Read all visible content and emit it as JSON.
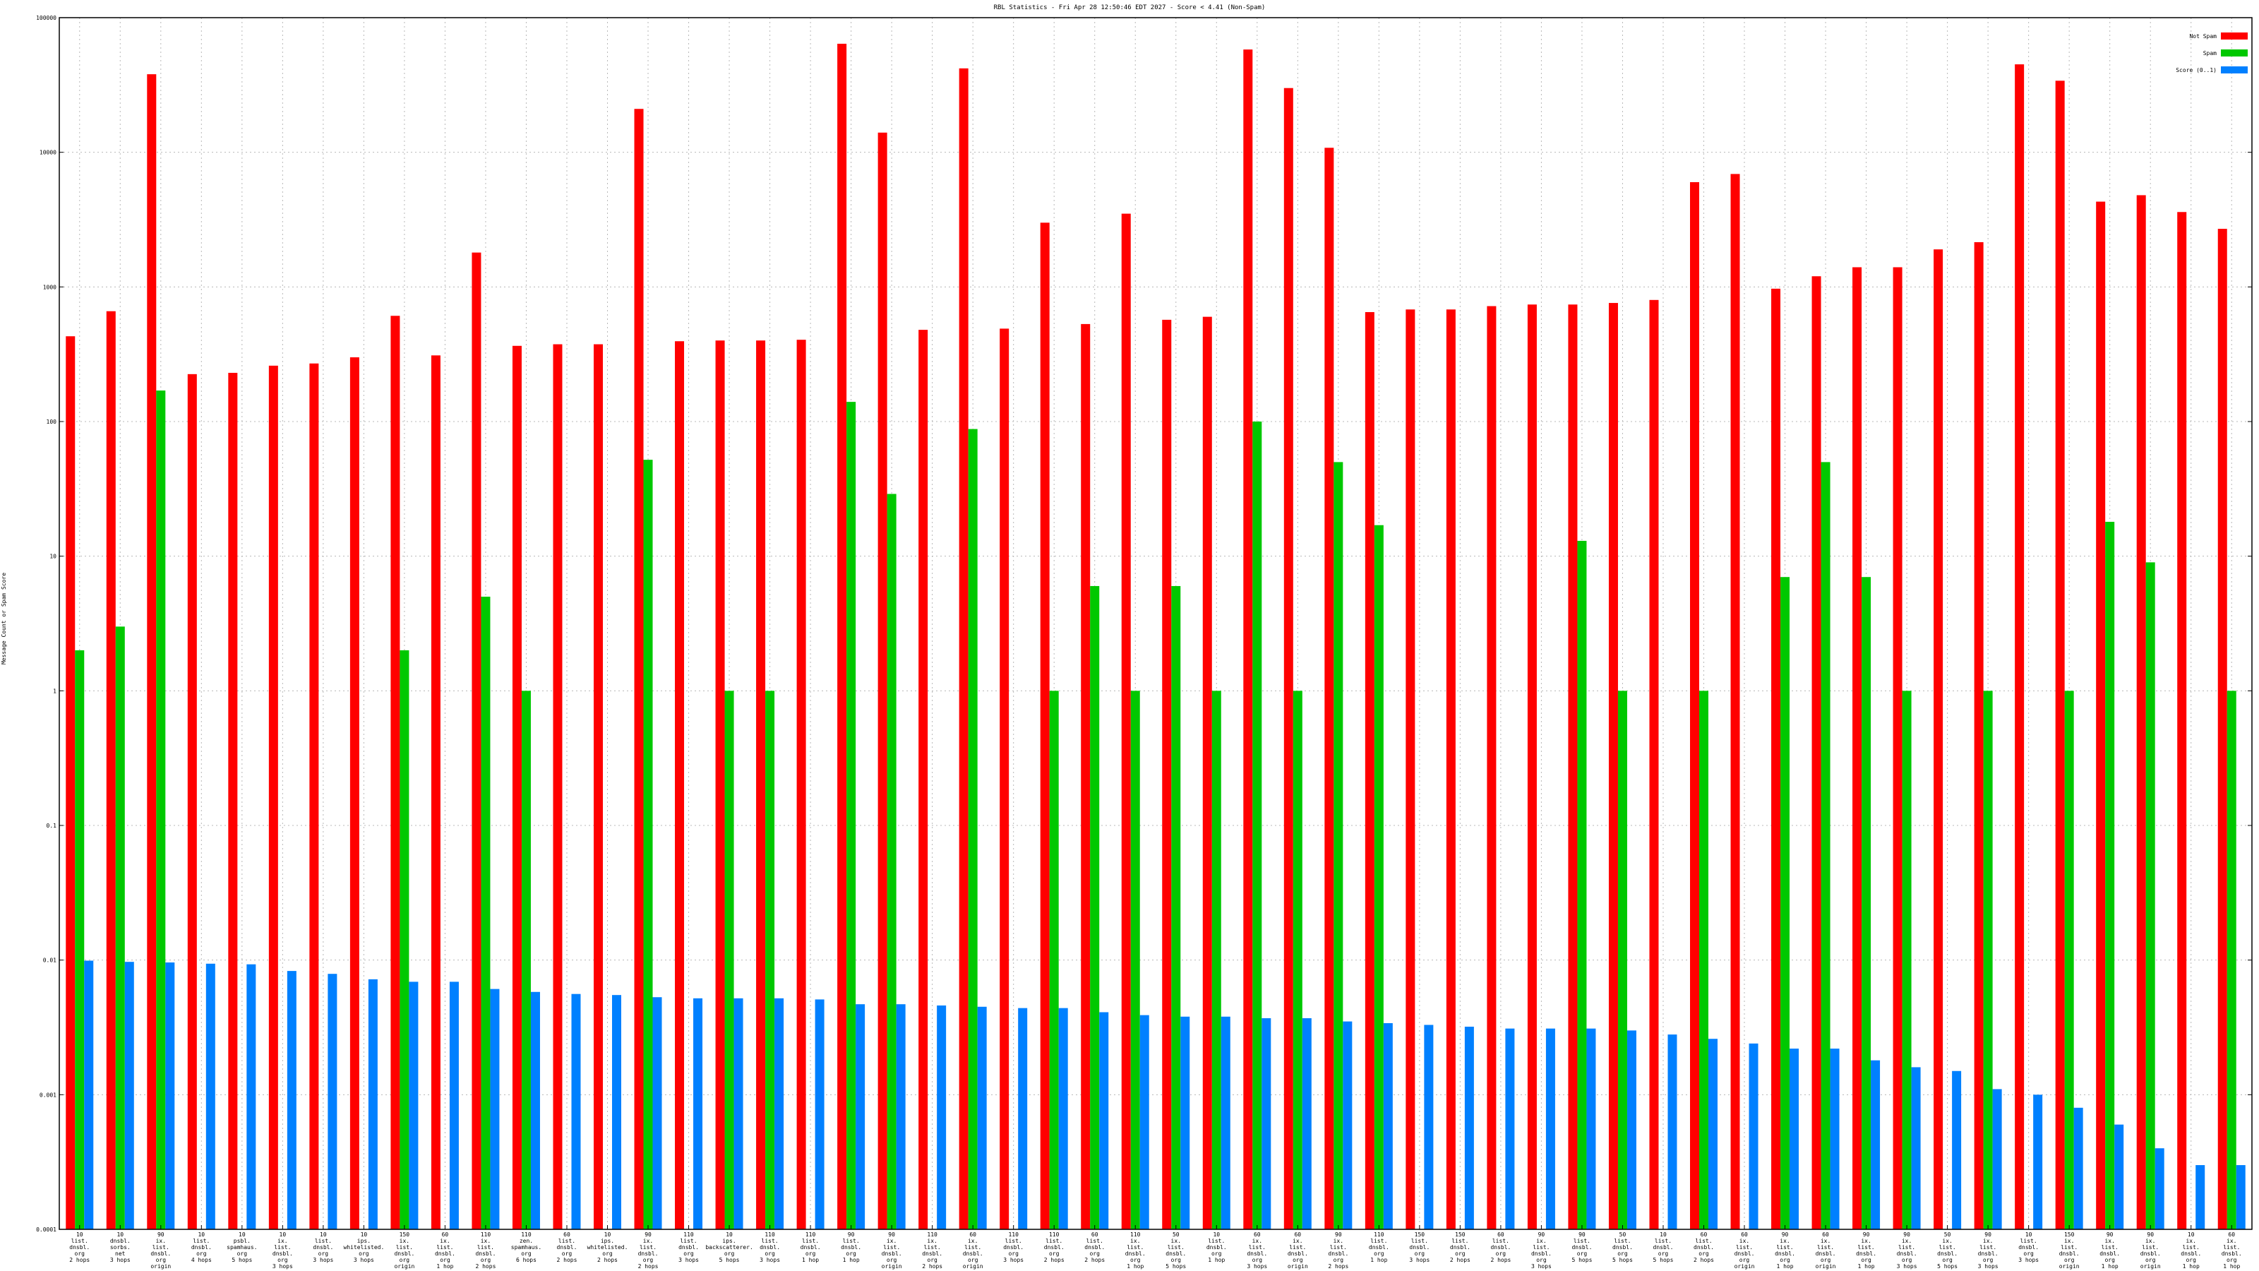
{
  "chart_data": {
    "type": "bar",
    "title": "RBL Statistics - Fri Apr 28 12:50:46 EDT 2027 - Score < 4.41 (Non-Spam)",
    "ylabel": "Message Count or Spam Score",
    "xlabel": "",
    "yscale": "log",
    "ylim": [
      0.0001,
      100000
    ],
    "ytick_labels": [
      "0.0001",
      "0.001",
      "0.01",
      "0.1",
      "1",
      "10",
      "100",
      "1000",
      "10000",
      "100000"
    ],
    "ytick_values": [
      0.0001,
      0.001,
      0.01,
      0.1,
      1,
      10,
      100,
      1000,
      10000,
      100000
    ],
    "grid": true,
    "legend_position": "top-right",
    "colors": {
      "not_spam": "#ff0000",
      "spam": "#00c800",
      "score": "#0080ff"
    },
    "categories": [
      [
        "10",
        "list.",
        "dnsbl.",
        "org",
        "2 hops"
      ],
      [
        "10",
        "dnsbl.",
        "sorbs.",
        "net",
        "3 hops"
      ],
      [
        "90",
        "ix.",
        "list.",
        "dnsbl.",
        "org",
        "origin"
      ],
      [
        "10",
        "list.",
        "dnsbl.",
        "org",
        "4 hops"
      ],
      [
        "10",
        "psbl.",
        "spamhaus.",
        "org",
        "5 hops"
      ],
      [
        "10",
        "ix.",
        "list.",
        "dnsbl.",
        "org",
        "3 hops"
      ],
      [
        "10",
        "list.",
        "dnsbl.",
        "org",
        "3 hops"
      ],
      [
        "10",
        "ips.",
        "whitelisted.",
        "org",
        "3 hops"
      ],
      [
        "150",
        "ix.",
        "list.",
        "dnsbl.",
        "org",
        "origin"
      ],
      [
        "60",
        "ix.",
        "list.",
        "dnsbl.",
        "org",
        "1 hop"
      ],
      [
        "110",
        "ix.",
        "list.",
        "dnsbl.",
        "org",
        "2 hops"
      ],
      [
        "110",
        "zen.",
        "spamhaus.",
        "org",
        "6 hops"
      ],
      [
        "60",
        "list.",
        "dnsbl.",
        "org",
        "2 hops"
      ],
      [
        "10",
        "ips.",
        "whitelisted.",
        "org",
        "2 hops"
      ],
      [
        "90",
        "ix.",
        "list.",
        "dnsbl.",
        "org",
        "2 hops"
      ],
      [
        "110",
        "list.",
        "dnsbl.",
        "org",
        "3 hops"
      ],
      [
        "10",
        "ips.",
        "backscatterer.",
        "org",
        "5 hops"
      ],
      [
        "110",
        "list.",
        "dnsbl.",
        "org",
        "3 hops"
      ],
      [
        "110",
        "list.",
        "dnsbl.",
        "org",
        "1 hop"
      ],
      [
        "90",
        "list.",
        "dnsbl.",
        "org",
        "1 hop"
      ],
      [
        "90",
        "ix.",
        "list.",
        "dnsbl.",
        "org",
        "origin"
      ],
      [
        "110",
        "ix.",
        "list.",
        "dnsbl.",
        "org",
        "2 hops"
      ],
      [
        "60",
        "ix.",
        "list.",
        "dnsbl.",
        "org",
        "origin"
      ],
      [
        "110",
        "list.",
        "dnsbl.",
        "org",
        "3 hops"
      ],
      [
        "110",
        "list.",
        "dnsbl.",
        "org",
        "2 hops"
      ],
      [
        "60",
        "list.",
        "dnsbl.",
        "org",
        "2 hops"
      ],
      [
        "110",
        "ix.",
        "list.",
        "dnsbl.",
        "org",
        "1 hop"
      ],
      [
        "50",
        "ix.",
        "list.",
        "dnsbl.",
        "org",
        "5 hops"
      ],
      [
        "10",
        "list.",
        "dnsbl.",
        "org",
        "1 hop"
      ],
      [
        "60",
        "ix.",
        "list.",
        "dnsbl.",
        "org",
        "3 hops"
      ],
      [
        "60",
        "ix.",
        "list.",
        "dnsbl.",
        "org",
        "origin"
      ],
      [
        "90",
        "ix.",
        "list.",
        "dnsbl.",
        "org",
        "2 hops"
      ],
      [
        "110",
        "list.",
        "dnsbl.",
        "org",
        "1 hop"
      ],
      [
        "150",
        "list.",
        "dnsbl.",
        "org",
        "3 hops"
      ],
      [
        "150",
        "list.",
        "dnsbl.",
        "org",
        "2 hops"
      ],
      [
        "60",
        "list.",
        "dnsbl.",
        "org",
        "2 hops"
      ],
      [
        "90",
        "ix.",
        "list.",
        "dnsbl.",
        "org",
        "3 hops"
      ],
      [
        "90",
        "list.",
        "dnsbl.",
        "org",
        "5 hops"
      ],
      [
        "50",
        "list.",
        "dnsbl.",
        "org",
        "5 hops"
      ],
      [
        "10",
        "list.",
        "dnsbl.",
        "org",
        "5 hops"
      ],
      [
        "60",
        "list.",
        "dnsbl.",
        "org",
        "2 hops"
      ],
      [
        "60",
        "ix.",
        "list.",
        "dnsbl.",
        "org",
        "origin"
      ],
      [
        "90",
        "ix.",
        "list.",
        "dnsbl.",
        "org",
        "1 hop"
      ],
      [
        "60",
        "ix.",
        "list.",
        "dnsbl.",
        "org",
        "origin"
      ],
      [
        "90",
        "ix.",
        "list.",
        "dnsbl.",
        "org",
        "1 hop"
      ],
      [
        "90",
        "ix.",
        "list.",
        "dnsbl.",
        "org",
        "3 hops"
      ],
      [
        "50",
        "ix.",
        "list.",
        "dnsbl.",
        "org",
        "5 hops"
      ],
      [
        "90",
        "ix.",
        "list.",
        "dnsbl.",
        "org",
        "3 hops"
      ],
      [
        "10",
        "list.",
        "dnsbl.",
        "org",
        "3 hops"
      ],
      [
        "150",
        "ix.",
        "list.",
        "dnsbl.",
        "org",
        "origin"
      ],
      [
        "90",
        "ix.",
        "list.",
        "dnsbl.",
        "org",
        "1 hop"
      ],
      [
        "90",
        "ix.",
        "list.",
        "dnsbl.",
        "org",
        "origin"
      ],
      [
        "10",
        "ix.",
        "list.",
        "dnsbl.",
        "org",
        "1 hop"
      ],
      [
        "60",
        "ix.",
        "list.",
        "dnsbl.",
        "org",
        "1 hop"
      ]
    ],
    "series": [
      {
        "name": "Not Spam",
        "values": [
          430,
          660,
          38000,
          225,
          230,
          260,
          270,
          300,
          610,
          310,
          1800,
          365,
          375,
          375,
          21000,
          395,
          400,
          400,
          405,
          64000,
          14000,
          480,
          42000,
          490,
          3000,
          530,
          3500,
          570,
          600,
          58000,
          30000,
          10800,
          650,
          680,
          680,
          720,
          740,
          740,
          760,
          800,
          6000,
          6900,
          970,
          1200,
          1400,
          1400,
          1900,
          2150,
          45000,
          34000,
          4300,
          4800,
          3600,
          2700
        ]
      },
      {
        "name": "Spam",
        "values": [
          2,
          3,
          170,
          null,
          null,
          null,
          null,
          null,
          2,
          null,
          5,
          1,
          null,
          null,
          52,
          null,
          1,
          1,
          null,
          140,
          29,
          null,
          88,
          null,
          1,
          6,
          1,
          6,
          1,
          100,
          1,
          50,
          17,
          null,
          null,
          null,
          null,
          13,
          1,
          null,
          1,
          null,
          7,
          50,
          7,
          1,
          null,
          1,
          null,
          1,
          18,
          9,
          null,
          1
        ]
      },
      {
        "name": "Score (0..1)",
        "values": [
          0.0099,
          0.0097,
          0.0096,
          0.0094,
          0.0093,
          0.0083,
          0.0079,
          0.0072,
          0.0069,
          0.0069,
          0.0061,
          0.0058,
          0.0056,
          0.0055,
          0.0053,
          0.0052,
          0.0052,
          0.0052,
          0.0051,
          0.0047,
          0.0047,
          0.0046,
          0.0045,
          0.0044,
          0.0044,
          0.0041,
          0.0039,
          0.0038,
          0.0038,
          0.0037,
          0.0037,
          0.0035,
          0.0034,
          0.0033,
          0.0032,
          0.0031,
          0.0031,
          0.0031,
          0.003,
          0.0028,
          0.0026,
          0.0024,
          0.0022,
          0.0022,
          0.0018,
          0.0016,
          0.0015,
          0.0011,
          0.001,
          0.0008,
          0.0006,
          0.0004,
          0.0003,
          0.0003
        ]
      }
    ]
  }
}
